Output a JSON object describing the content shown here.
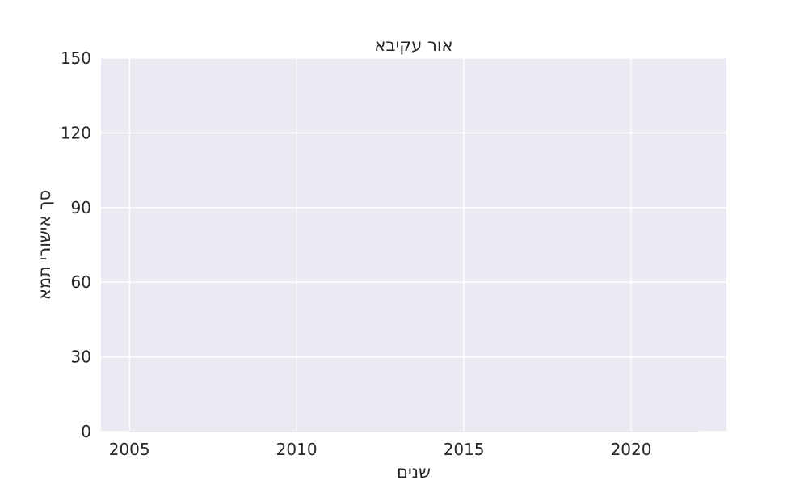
{
  "chart_data": {
    "type": "area",
    "title": "אור עקיבא",
    "xlabel": "שנים",
    "ylabel": "סך אישורי תמא",
    "x": [
      2005,
      2006,
      2007,
      2008,
      2009,
      2010,
      2011,
      2012,
      2013,
      2014,
      2015,
      2016,
      2017,
      2018,
      2019,
      2020,
      2021,
      2022
    ],
    "series": [
      {
        "values": [
          0,
          0,
          0,
          0,
          0,
          0,
          0,
          0,
          0,
          0,
          0,
          0,
          0,
          0,
          0,
          0,
          0,
          0
        ]
      }
    ],
    "xlim": [
      2004.15,
      2022.85
    ],
    "ylim": [
      0,
      150
    ],
    "xticks": [
      "2005",
      "2010",
      "2015",
      "2020"
    ],
    "yticks": [
      "0",
      "30",
      "60",
      "90",
      "120",
      "150"
    ],
    "grid": true,
    "colors": {
      "background": "#eaeaf2",
      "grid": "#ffffff",
      "text": "#262626",
      "fill": "#e6e9ef"
    }
  }
}
